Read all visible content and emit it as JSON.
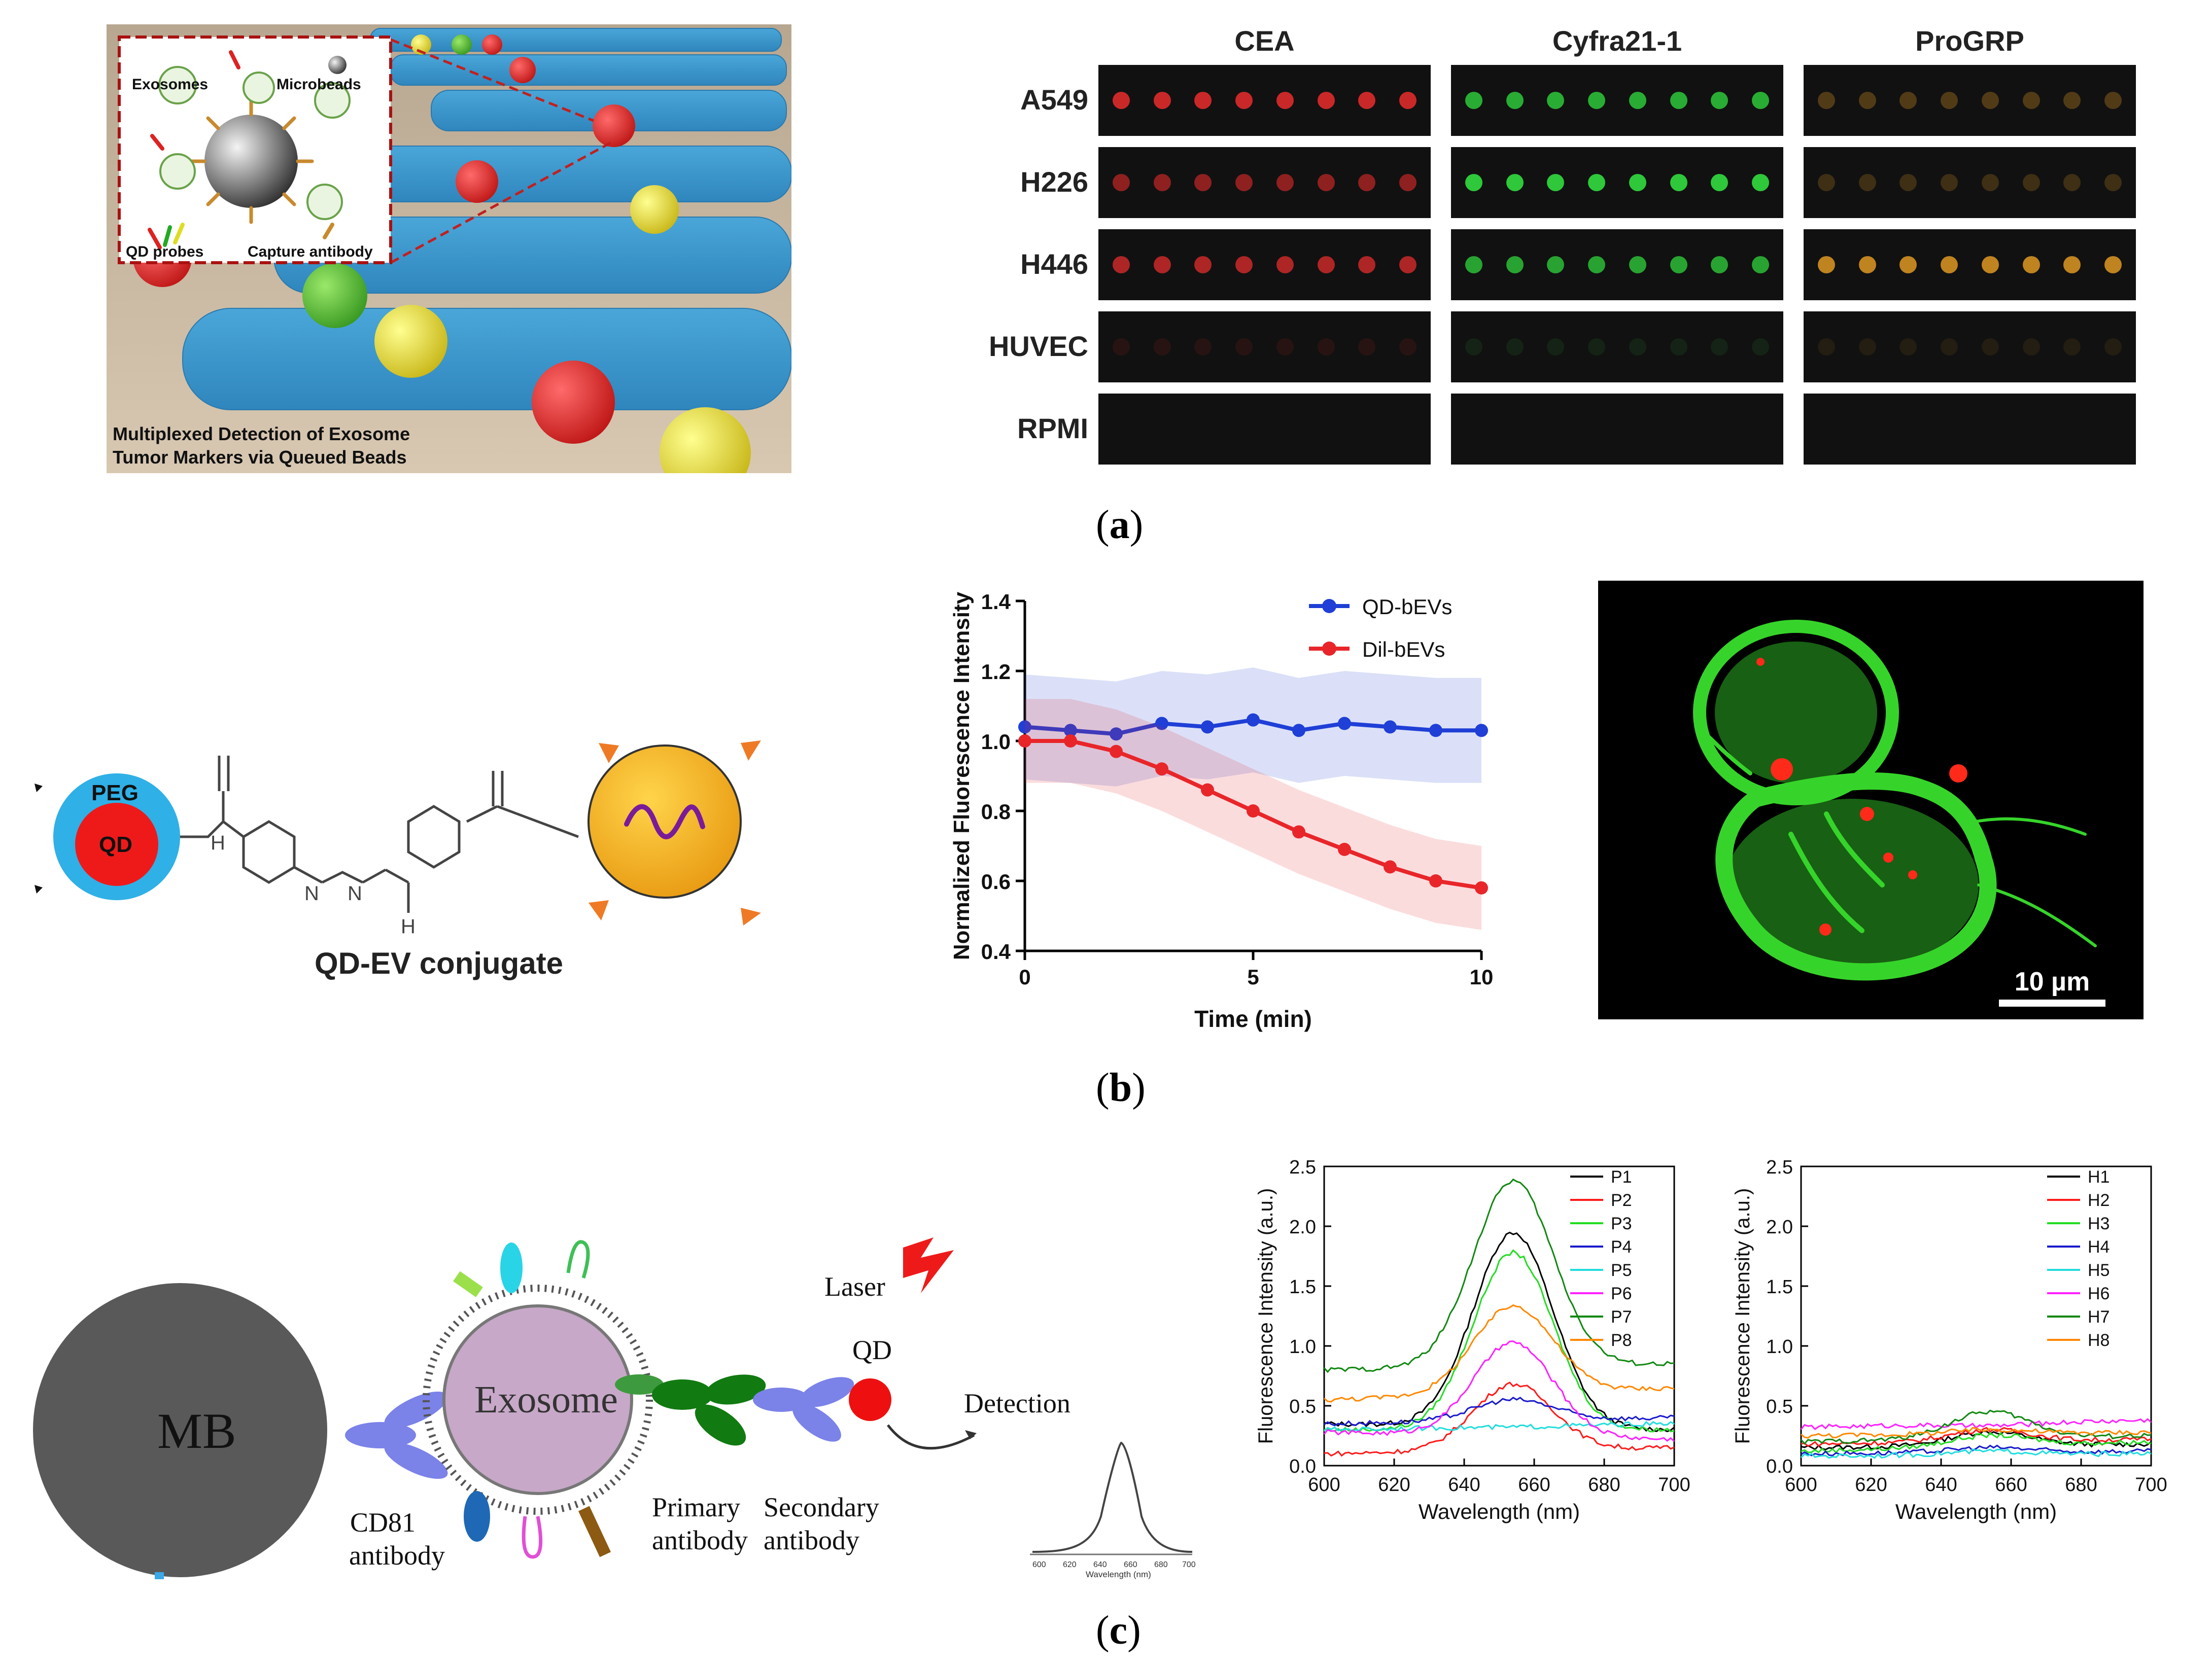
{
  "panel_a": {
    "caption": "a",
    "schematic": {
      "inset_labels": {
        "exosomes": "Exosomes",
        "microbeads": "Microbeads",
        "qd_probes": "QD probes",
        "capture_antibody": "Capture antibody"
      },
      "title_line1": "Multiplexed Detection of Exosome",
      "title_line2": "Tumor Markers via Queued Beads"
    },
    "array": {
      "columns": [
        "CEA",
        "Cyfra21-1",
        "ProGRP"
      ],
      "rows": [
        "A549",
        "H226",
        "H446",
        "HUVEC",
        "RPMI"
      ],
      "column_colors": [
        "#d42a2a",
        "#2ec83a",
        "#c98a22"
      ],
      "intensity": [
        [
          0.95,
          0.85,
          0.35
        ],
        [
          0.65,
          1.0,
          0.25
        ],
        [
          0.8,
          0.8,
          0.95
        ],
        [
          0.12,
          0.1,
          0.1
        ],
        [
          0,
          0,
          0
        ]
      ]
    }
  },
  "panel_b": {
    "caption": "b",
    "conjugate": {
      "peg_label": "PEG",
      "qd_label": "QD",
      "n_label": "N",
      "h_label": "H",
      "title": "QD-EV conjugate"
    },
    "scale_bar_label": "10 µm",
    "chart_data": {
      "type": "line",
      "xlabel": "Time (min)",
      "ylabel": "Normalized Fluorescence Intensity",
      "xlim": [
        0,
        10
      ],
      "ylim": [
        0.4,
        1.4
      ],
      "xticks": [
        "0",
        "5",
        "10"
      ],
      "yticks": [
        "0.4",
        "0.6",
        "0.8",
        "1.0",
        "1.2",
        "1.4"
      ],
      "series": [
        {
          "name": "QD-bEVs",
          "color": "#1f3fd6",
          "x": [
            0,
            1,
            2,
            3,
            4,
            5,
            6,
            7,
            8,
            9,
            10
          ],
          "y": [
            1.04,
            1.03,
            1.02,
            1.05,
            1.04,
            1.06,
            1.03,
            1.05,
            1.04,
            1.03,
            1.03
          ],
          "err": 0.15
        },
        {
          "name": "Dil-bEVs",
          "color": "#e8262a",
          "x": [
            0,
            1,
            2,
            3,
            4,
            5,
            6,
            7,
            8,
            9,
            10
          ],
          "y": [
            1.0,
            1.0,
            0.97,
            0.92,
            0.86,
            0.8,
            0.74,
            0.69,
            0.64,
            0.6,
            0.58
          ],
          "err": 0.12
        }
      ]
    }
  },
  "panel_c": {
    "caption": "c",
    "schematic": {
      "mb": "MB",
      "exosome": "Exosome",
      "cd81_line1": "CD81",
      "cd81_line2": "antibody",
      "primary_line1": "Primary",
      "primary_line2": "antibody",
      "secondary_line1": "Secondary",
      "secondary_line2": "antibody",
      "laser": "Laser",
      "qd": "QD",
      "detection": "Detection",
      "mini_xlabel": "Wavelength (nm)",
      "mini_ticks": [
        "600",
        "620",
        "640",
        "660",
        "680",
        "700"
      ]
    },
    "chart_data": [
      {
        "type": "line",
        "xlabel": "Wavelength (nm)",
        "ylabel": "Fluorescence Intensity (a.u.)",
        "xlim": [
          600,
          700
        ],
        "ylim": [
          0,
          2.5
        ],
        "xticks": [
          "600",
          "620",
          "640",
          "660",
          "680",
          "700"
        ],
        "yticks": [
          "0.0",
          "0.5",
          "1.0",
          "1.5",
          "2.0",
          "2.5"
        ],
        "series": [
          {
            "name": "P1",
            "color": "#000000",
            "base": 0.35,
            "peak": 1.95,
            "end": 0.3
          },
          {
            "name": "P2",
            "color": "#ff1a1a",
            "base": 0.1,
            "peak": 0.68,
            "end": 0.15
          },
          {
            "name": "P3",
            "color": "#22dd22",
            "base": 0.3,
            "peak": 1.78,
            "end": 0.3
          },
          {
            "name": "P4",
            "color": "#1a1acc",
            "base": 0.35,
            "peak": 0.55,
            "end": 0.4
          },
          {
            "name": "P5",
            "color": "#22dddd",
            "base": 0.3,
            "peak": 0.32,
            "end": 0.35
          },
          {
            "name": "P6",
            "color": "#ff22ff",
            "base": 0.28,
            "peak": 1.03,
            "end": 0.22
          },
          {
            "name": "P7",
            "color": "#118811",
            "base": 0.8,
            "peak": 2.38,
            "end": 0.85
          },
          {
            "name": "P8",
            "color": "#ff8800",
            "base": 0.55,
            "peak": 1.33,
            "end": 0.65
          }
        ]
      },
      {
        "type": "line",
        "xlabel": "Wavelength (nm)",
        "ylabel": "Fluorescence Intensity (a.u.)",
        "xlim": [
          600,
          700
        ],
        "ylim": [
          0,
          2.5
        ],
        "xticks": [
          "600",
          "620",
          "640",
          "660",
          "680",
          "700"
        ],
        "yticks": [
          "0.0",
          "0.5",
          "1.0",
          "1.5",
          "2.0",
          "2.5"
        ],
        "series": [
          {
            "name": "H1",
            "color": "#000000",
            "base": 0.15,
            "peak": 0.28,
            "end": 0.18
          },
          {
            "name": "H2",
            "color": "#ff1a1a",
            "base": 0.18,
            "peak": 0.3,
            "end": 0.22
          },
          {
            "name": "H3",
            "color": "#22dd22",
            "base": 0.12,
            "peak": 0.25,
            "end": 0.2
          },
          {
            "name": "H4",
            "color": "#1a1acc",
            "base": 0.1,
            "peak": 0.15,
            "end": 0.12
          },
          {
            "name": "H5",
            "color": "#22dddd",
            "base": 0.08,
            "peak": 0.12,
            "end": 0.1
          },
          {
            "name": "H6",
            "color": "#ff22ff",
            "base": 0.32,
            "peak": 0.33,
            "end": 0.38
          },
          {
            "name": "H7",
            "color": "#118811",
            "base": 0.2,
            "peak": 0.45,
            "end": 0.25
          },
          {
            "name": "H8",
            "color": "#ff8800",
            "base": 0.25,
            "peak": 0.3,
            "end": 0.28
          }
        ]
      }
    ]
  }
}
